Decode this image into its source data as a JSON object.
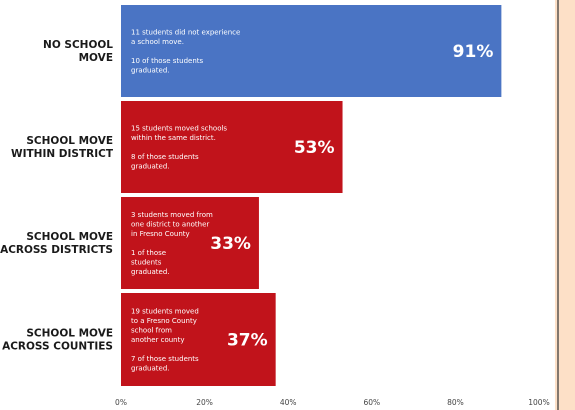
{
  "chart_data": {
    "type": "bar",
    "orientation": "horizontal",
    "categories": [
      [
        "NO SCHOOL",
        "MOVE"
      ],
      [
        "SCHOOL MOVE",
        "WITHIN DISTRICT"
      ],
      [
        "SCHOOL MOVE",
        "ACROSS DISTRICTS"
      ],
      [
        "SCHOOL MOVE",
        "ACROSS COUNTIES"
      ]
    ],
    "values": [
      91,
      53,
      33,
      37
    ],
    "value_labels": [
      "91%",
      "53%",
      "33%",
      "37%"
    ],
    "bar_texts": [
      [
        "11 students did not experience",
        "a school move.",
        "",
        "10 of those students",
        "graduated."
      ],
      [
        "15 students moved schools",
        "within the same district.",
        "",
        "8 of those students",
        "graduated."
      ],
      [
        "3 students moved from",
        "one district to another",
        "in Fresno County",
        "",
        "1 of those",
        "students",
        "graduated."
      ],
      [
        "19 students moved",
        "to a Fresno County",
        "school from",
        "another county",
        "",
        "7 of those students",
        "graduated."
      ]
    ],
    "colors": [
      "#4a74c4",
      "#c1131b",
      "#c1131b",
      "#c1131b"
    ],
    "x_ticks": [
      "0%",
      "20%",
      "40%",
      "60%",
      "80%",
      "100%"
    ],
    "xlim": [
      0,
      100
    ],
    "grid": false,
    "legend": "none"
  },
  "side_panel_color": "#fde0c7"
}
